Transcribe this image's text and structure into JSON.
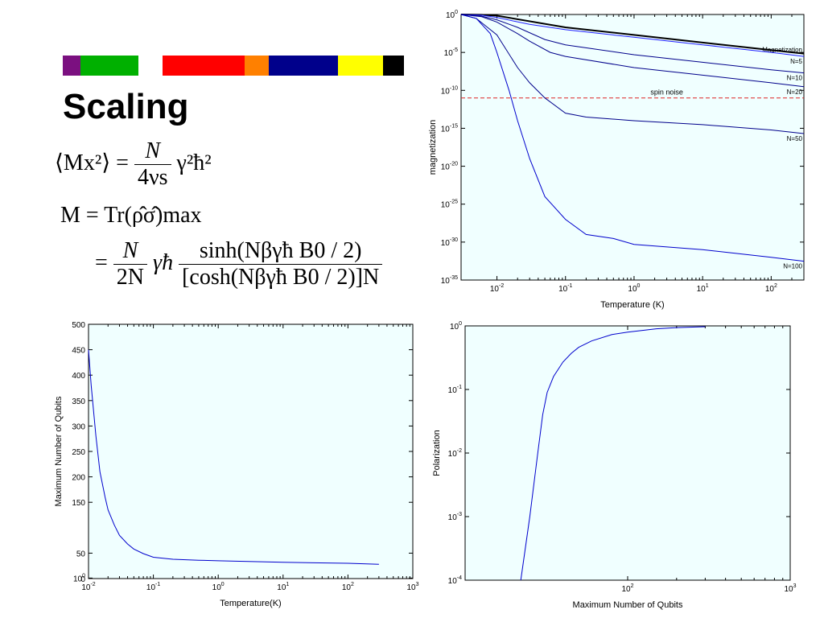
{
  "slide": {
    "title": "Scaling",
    "color_bar": [
      "#7b1080",
      "#00b000",
      "#ffffff",
      "#ff0000",
      "#ff8000",
      "#00008b",
      "#ffff00",
      "#000000"
    ]
  },
  "equations": {
    "eq1_lhs": "⟨Mx²⟩ =",
    "eq1_num": "N",
    "eq1_den": "4νs",
    "eq1_rhs": "γ²ħ²",
    "eq2": "M = Tr(ρ̂σ̂)max",
    "eq3_num1": "N",
    "eq3_den1": "2N",
    "eq3_mid": "γħ",
    "eq3_num2": "sinh(Nβγħ B0 / 2)",
    "eq3_den2": "[cosh(Nβγħ B0 / 2)]N"
  },
  "chart_data": [
    {
      "type": "line",
      "xlabel": "Temperature (K)",
      "ylabel": "magnetization",
      "x_scale": "log",
      "y_scale": "log",
      "xlim": [
        0.003,
        300
      ],
      "ylim": [
        1e-35,
        1
      ],
      "x_ticks": [
        "10-2",
        "10-1",
        "100",
        "101",
        "102"
      ],
      "y_ticks": [
        "100",
        "10-5",
        "10-10",
        "10-15",
        "10-20",
        "10-25",
        "10-30",
        "10-35"
      ],
      "series": [
        {
          "name": "Magnetization",
          "color": "#000000",
          "x": [
            0.003,
            0.006,
            0.01,
            0.1,
            1,
            10,
            100,
            300
          ],
          "y": [
            1,
            0.9,
            0.7,
            0.02,
            0.002,
            0.0002,
            2e-05,
            7e-06
          ]
        },
        {
          "name": "N=5",
          "color": "#2020ff",
          "x": [
            0.003,
            0.006,
            0.01,
            0.03,
            0.1,
            1,
            10,
            100,
            300
          ],
          "y": [
            1,
            0.8,
            0.4,
            0.05,
            0.01,
            0.001,
            0.0001,
            1e-05,
            3e-06
          ]
        },
        {
          "name": "N=10",
          "color": "#00008b",
          "x": [
            0.003,
            0.006,
            0.01,
            0.02,
            0.05,
            0.1,
            1,
            10,
            100,
            300
          ],
          "y": [
            1,
            0.6,
            0.2,
            0.02,
            0.0005,
            0.0001,
            5e-06,
            5e-07,
            5e-08,
            2e-08
          ]
        },
        {
          "name": "N=20",
          "color": "#00008b",
          "x": [
            0.003,
            0.006,
            0.01,
            0.02,
            0.03,
            0.06,
            0.1,
            1,
            10,
            100,
            300
          ],
          "y": [
            1,
            0.5,
            0.1,
            0.003,
            0.0003,
            1e-05,
            3e-06,
            1e-07,
            1e-08,
            1e-09,
            3e-10
          ]
        },
        {
          "name": "N=50",
          "color": "#00008b",
          "x": [
            0.003,
            0.005,
            0.01,
            0.02,
            0.03,
            0.05,
            0.1,
            0.2,
            1,
            10,
            100,
            300
          ],
          "y": [
            1,
            0.3,
            0.002,
            1e-07,
            1e-09,
            1e-11,
            1e-13,
            3e-14,
            1e-14,
            3e-15,
            6e-16,
            2e-16
          ]
        },
        {
          "name": "N=100",
          "color": "#0000cd",
          "x": [
            0.003,
            0.005,
            0.008,
            0.01,
            0.015,
            0.02,
            0.03,
            0.05,
            0.1,
            0.2,
            0.5,
            1,
            10,
            100,
            300
          ],
          "y": [
            1,
            0.3,
            0.003,
            1e-05,
            1e-10,
            1e-14,
            1e-19,
            1e-24,
            1e-27,
            1e-29,
            3e-30,
            5e-31,
            1e-31,
            1e-32,
            3e-33
          ]
        }
      ],
      "reference_line": {
        "label": "spin noise",
        "y": 1e-11,
        "color": "#dd2222"
      }
    },
    {
      "type": "line",
      "xlabel": "Temperature(K)",
      "ylabel": "Maximum Number of Qubits",
      "x_scale": "log",
      "xlim": [
        0.01,
        1000
      ],
      "ylim": [
        0,
        500
      ],
      "x_ticks": [
        "10-2",
        "10-1",
        "100",
        "101",
        "102",
        "103"
      ],
      "y_ticks": [
        "0",
        "50",
        "100",
        "150",
        "200",
        "250",
        "300",
        "350",
        "400",
        "450",
        "500"
      ],
      "series": [
        {
          "color": "#0000cd",
          "x": [
            0.01,
            0.011,
            0.013,
            0.015,
            0.018,
            0.02,
            0.025,
            0.03,
            0.04,
            0.05,
            0.07,
            0.1,
            0.2,
            0.5,
            1,
            10,
            100,
            300
          ],
          "y": [
            450,
            380,
            280,
            210,
            160,
            135,
            105,
            85,
            68,
            58,
            49,
            42,
            38,
            36,
            35,
            32,
            30,
            28
          ]
        }
      ]
    },
    {
      "type": "line",
      "xlabel": "Maximum Number of Qubits",
      "ylabel": "Polarization",
      "x_scale": "log",
      "y_scale": "log",
      "xlim": [
        10,
        1000
      ],
      "ylim": [
        0.0001,
        1
      ],
      "x_ticks": [
        "102",
        "103"
      ],
      "y_ticks": [
        "100",
        "10-1",
        "10-2",
        "10-3",
        "10-4"
      ],
      "series": [
        {
          "color": "#0000cd",
          "x": [
            22,
            25,
            28,
            30,
            32,
            35,
            40,
            45,
            50,
            60,
            80,
            100,
            150,
            200,
            300
          ],
          "y": [
            0.0001,
            0.001,
            0.01,
            0.04,
            0.09,
            0.16,
            0.27,
            0.37,
            0.46,
            0.58,
            0.73,
            0.8,
            0.9,
            0.94,
            0.97
          ]
        }
      ]
    }
  ]
}
